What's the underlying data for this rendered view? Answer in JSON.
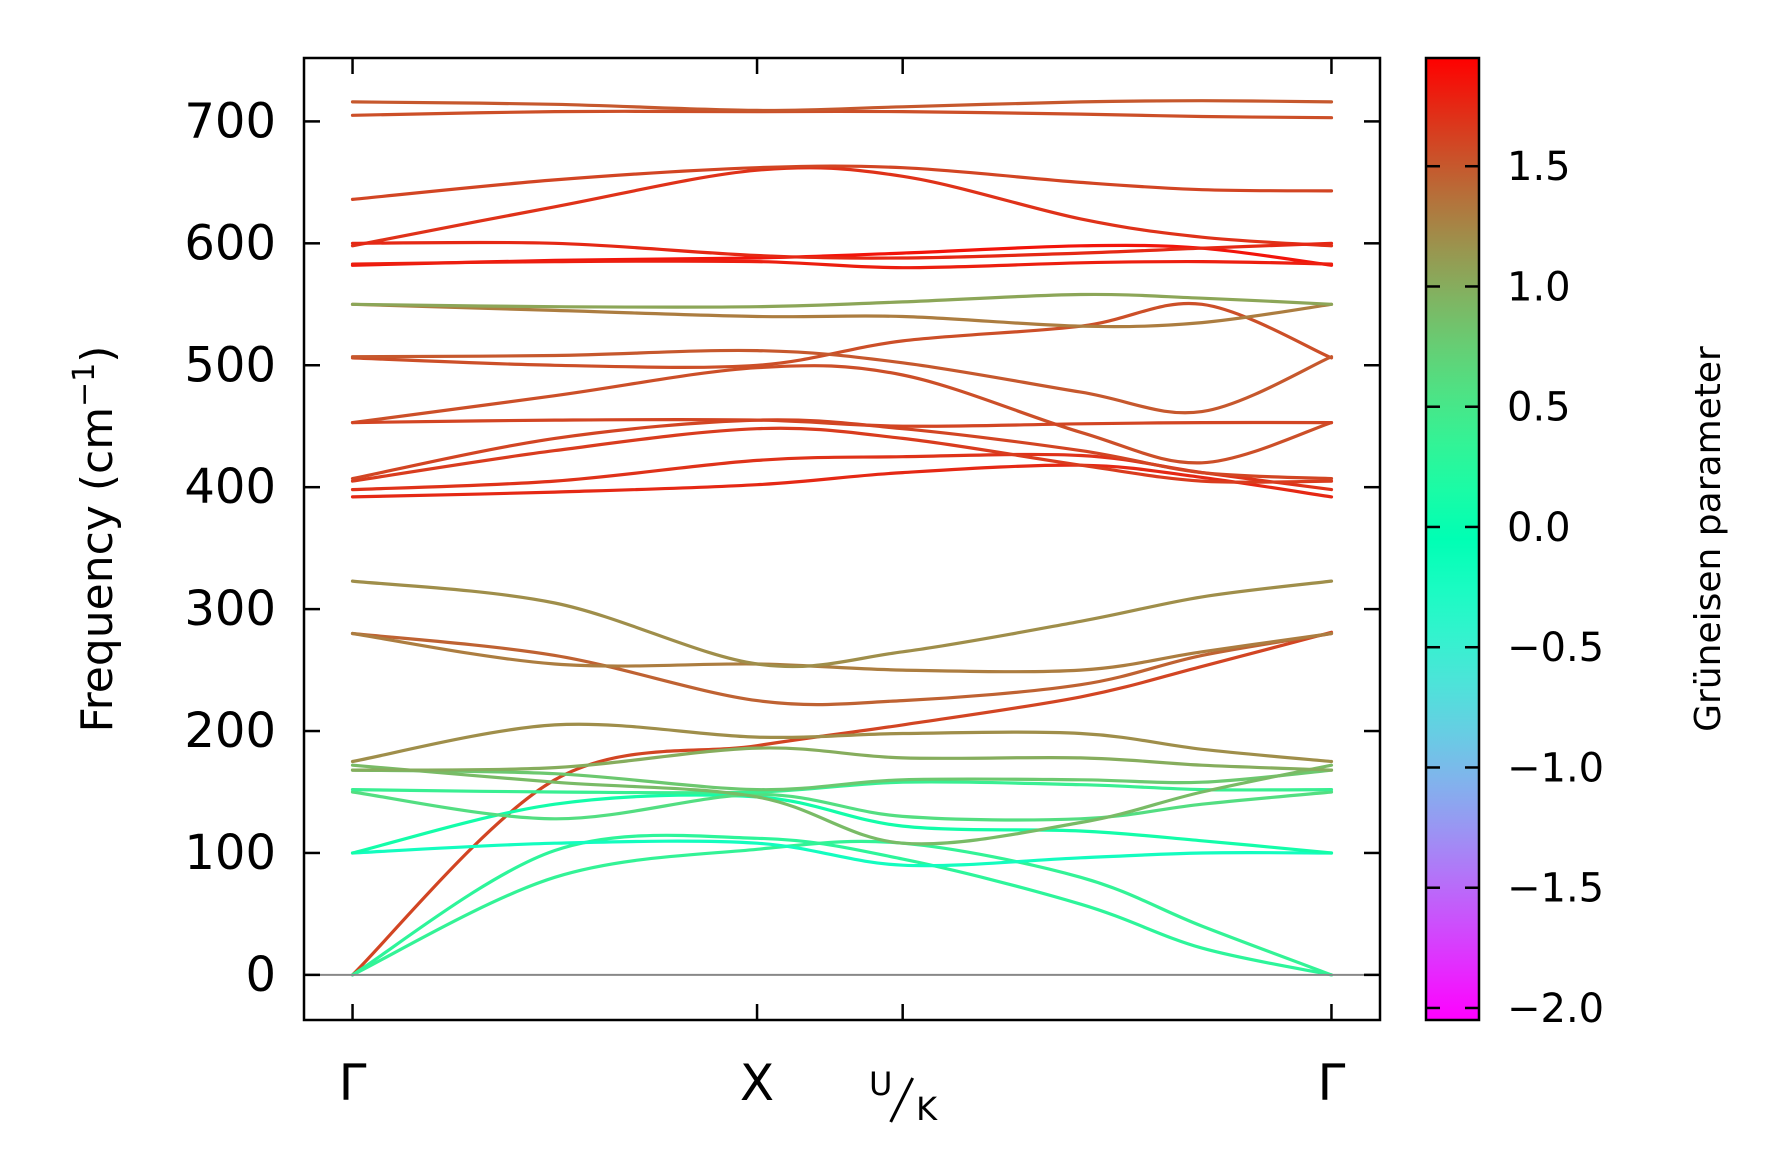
{
  "chart_data": {
    "type": "line",
    "title": "",
    "xlabel": "",
    "ylabel": "Frequency (cm",
    "ylabel_sup": "−1",
    "ylabel_end": ")",
    "ylim": [
      -37,
      752
    ],
    "yticks": [
      0,
      100,
      200,
      300,
      400,
      500,
      600,
      700
    ],
    "xticks": [
      {
        "label": "Γ",
        "x": 0
      },
      {
        "label": "X",
        "x": 1
      },
      {
        "label": "U/K",
        "label_top": "U",
        "label_bottom": "K",
        "x": 1.36
      },
      {
        "label": "Γ",
        "x": 2.42
      }
    ],
    "xlim": [
      -0.12,
      2.54
    ],
    "grid": false,
    "legend": "none",
    "zero_line": 0,
    "colorbar": {
      "label": "Grüneisen parameter",
      "range": [
        -2.05,
        1.95
      ],
      "ticks": [
        "−2.0",
        "−1.5",
        "−1.0",
        "−0.5",
        "0.0",
        "0.5",
        "1.0",
        "1.5"
      ],
      "tick_values": [
        -2.0,
        -1.5,
        -1.0,
        -0.5,
        0.0,
        0.5,
        1.0,
        1.5
      ],
      "colormap": "rainbow"
    },
    "series": [
      {
        "values": [
          0,
          160,
          188,
          205,
          228,
          253,
          281
        ],
        "gamma": 1.6
      },
      {
        "values": [
          0,
          102,
          112,
          95,
          58,
          22,
          0
        ],
        "gamma": 0.3
      },
      {
        "values": [
          0,
          80,
          103,
          108,
          80,
          40,
          0
        ],
        "gamma": 0.35
      },
      {
        "values": [
          100,
          108,
          108,
          90,
          96,
          100,
          100
        ],
        "gamma": -0.2
      },
      {
        "values": [
          100,
          140,
          146,
          122,
          118,
          110,
          100
        ],
        "gamma": 0.1
      },
      {
        "values": [
          150,
          128,
          148,
          130,
          128,
          140,
          150
        ],
        "gamma": 0.6
      },
      {
        "values": [
          152,
          150,
          150,
          158,
          156,
          152,
          152
        ],
        "gamma": 0.4
      },
      {
        "values": [
          168,
          165,
          152,
          160,
          160,
          158,
          168
        ],
        "gamma": 0.8
      },
      {
        "values": [
          172,
          158,
          146,
          108,
          125,
          150,
          172
        ],
        "gamma": 0.9
      },
      {
        "values": [
          168,
          170,
          186,
          178,
          178,
          172,
          168
        ],
        "gamma": 1.0
      },
      {
        "values": [
          175,
          205,
          195,
          198,
          198,
          185,
          175
        ],
        "gamma": 1.2
      },
      {
        "values": [
          280,
          262,
          225,
          225,
          238,
          262,
          280
        ],
        "gamma": 1.45
      },
      {
        "values": [
          280,
          255,
          255,
          250,
          250,
          265,
          280
        ],
        "gamma": 1.3
      },
      {
        "values": [
          323,
          305,
          255,
          265,
          290,
          310,
          323
        ],
        "gamma": 1.2
      },
      {
        "values": [
          392,
          396,
          402,
          412,
          418,
          408,
          392
        ],
        "gamma": 1.75
      },
      {
        "values": [
          398,
          405,
          422,
          425,
          426,
          412,
          398
        ],
        "gamma": 1.7
      },
      {
        "values": [
          405,
          430,
          448,
          440,
          418,
          405,
          405
        ],
        "gamma": 1.65
      },
      {
        "values": [
          407,
          440,
          455,
          448,
          430,
          412,
          407
        ],
        "gamma": 1.6
      },
      {
        "values": [
          453,
          475,
          498,
          492,
          445,
          420,
          453
        ],
        "gamma": 1.55
      },
      {
        "values": [
          453,
          455,
          455,
          450,
          452,
          453,
          453
        ],
        "gamma": 1.6
      },
      {
        "values": [
          506,
          500,
          500,
          520,
          532,
          550,
          506
        ],
        "gamma": 1.55
      },
      {
        "values": [
          507,
          508,
          512,
          502,
          478,
          462,
          507
        ],
        "gamma": 1.5
      },
      {
        "values": [
          550,
          545,
          540,
          540,
          532,
          535,
          550
        ],
        "gamma": 1.3
      },
      {
        "values": [
          550,
          548,
          548,
          552,
          558,
          555,
          550
        ],
        "gamma": 1.05
      },
      {
        "values": [
          582,
          586,
          588,
          592,
          598,
          596,
          582
        ],
        "gamma": 1.85
      },
      {
        "values": [
          583,
          585,
          585,
          580,
          584,
          585,
          583
        ],
        "gamma": 1.8
      },
      {
        "values": [
          598,
          630,
          660,
          655,
          620,
          605,
          598
        ],
        "gamma": 1.7
      },
      {
        "values": [
          600,
          600,
          590,
          588,
          592,
          596,
          600
        ],
        "gamma": 1.75
      },
      {
        "values": [
          636,
          652,
          662,
          662,
          650,
          644,
          643
        ],
        "gamma": 1.6
      },
      {
        "values": [
          705,
          708,
          708,
          708,
          706,
          704,
          703
        ],
        "gamma": 1.55
      },
      {
        "values": [
          716,
          714,
          709,
          712,
          716,
          717,
          716
        ],
        "gamma": 1.5
      }
    ],
    "x": [
      0,
      0.5,
      1.0,
      1.36,
      1.8,
      2.1,
      2.42
    ]
  }
}
